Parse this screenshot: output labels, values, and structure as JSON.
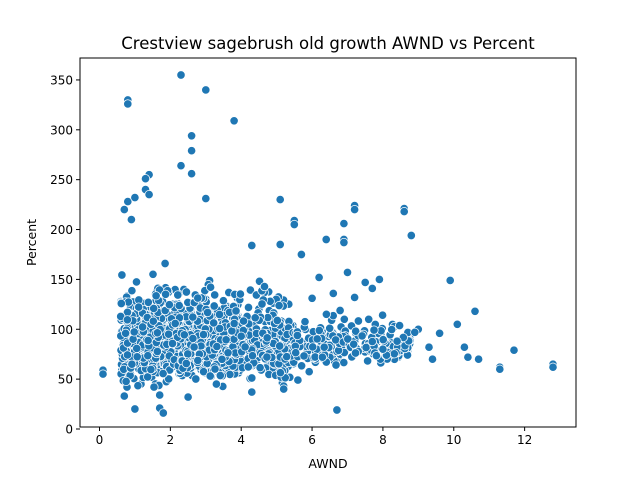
{
  "chart_data": {
    "type": "scatter",
    "title": "Crestview sagebrush old growth AWND vs Percent",
    "xlabel": "AWND",
    "ylabel": "Percent",
    "xlim": [
      -0.55,
      13.45
    ],
    "ylim": [
      2,
      372
    ],
    "xticks": [
      0,
      2,
      4,
      6,
      8,
      10,
      12
    ],
    "yticks": [
      0,
      50,
      100,
      150,
      200,
      250,
      300,
      350
    ],
    "grid": false,
    "legend": "none",
    "color": "#1f77b4",
    "outliers": [
      [
        2.3,
        355
      ],
      [
        0.8,
        330
      ],
      [
        0.8,
        326
      ],
      [
        3.0,
        340
      ],
      [
        3.8,
        309
      ],
      [
        2.6,
        294
      ],
      [
        2.6,
        279
      ],
      [
        2.3,
        264
      ],
      [
        2.6,
        256
      ],
      [
        1.4,
        255
      ],
      [
        1.3,
        251
      ],
      [
        1.3,
        240
      ],
      [
        1.4,
        235
      ],
      [
        0.8,
        228
      ],
      [
        1.0,
        232
      ],
      [
        0.7,
        220
      ],
      [
        0.9,
        210
      ],
      [
        3.0,
        231
      ],
      [
        5.1,
        230
      ],
      [
        7.2,
        224
      ],
      [
        7.2,
        220
      ],
      [
        8.6,
        221
      ],
      [
        8.6,
        218
      ],
      [
        8.8,
        194
      ],
      [
        6.9,
        206
      ],
      [
        5.5,
        209
      ],
      [
        5.5,
        205
      ],
      [
        6.9,
        190
      ],
      [
        6.9,
        187
      ],
      [
        6.4,
        190
      ],
      [
        5.1,
        185
      ],
      [
        4.3,
        184
      ],
      [
        5.7,
        175
      ],
      [
        6.2,
        152
      ],
      [
        7.0,
        157
      ],
      [
        7.5,
        147
      ],
      [
        7.9,
        150
      ],
      [
        7.7,
        141
      ],
      [
        9.9,
        149
      ],
      [
        6.6,
        136
      ],
      [
        6.0,
        131
      ],
      [
        7.2,
        132
      ],
      [
        10.6,
        118
      ],
      [
        10.1,
        105
      ],
      [
        9.6,
        96
      ],
      [
        10.3,
        82
      ],
      [
        10.4,
        72
      ],
      [
        10.7,
        70
      ],
      [
        11.3,
        62
      ],
      [
        11.3,
        60
      ],
      [
        11.7,
        79
      ],
      [
        12.8,
        65
      ],
      [
        12.8,
        62
      ],
      [
        0.1,
        59
      ],
      [
        0.1,
        55
      ],
      [
        0.7,
        33
      ],
      [
        1.0,
        20
      ],
      [
        1.7,
        34
      ],
      [
        1.7,
        21
      ],
      [
        1.8,
        16
      ],
      [
        2.5,
        32
      ],
      [
        3.3,
        45
      ],
      [
        4.3,
        37
      ],
      [
        6.7,
        19
      ],
      [
        5.2,
        43
      ],
      [
        5.2,
        40
      ],
      [
        5.6,
        49
      ],
      [
        9.4,
        70
      ],
      [
        9.0,
        100
      ],
      [
        9.3,
        82
      ],
      [
        8.9,
        97
      ],
      [
        8.1,
        74
      ],
      [
        7.6,
        110
      ],
      [
        8.0,
        80
      ],
      [
        8.4,
        88
      ]
    ],
    "clusters": [
      {
        "xmin": 0.6,
        "xmax": 4.0,
        "center": 75,
        "spread": 26,
        "count": 1250
      },
      {
        "xmin": 4.0,
        "xmax": 5.5,
        "center": 76,
        "spread": 24,
        "count": 230
      },
      {
        "xmin": 5.5,
        "xmax": 7.0,
        "center": 76,
        "spread": 18,
        "count": 110
      },
      {
        "xmin": 7.0,
        "xmax": 8.8,
        "center": 80,
        "spread": 12,
        "count": 100
      }
    ]
  }
}
